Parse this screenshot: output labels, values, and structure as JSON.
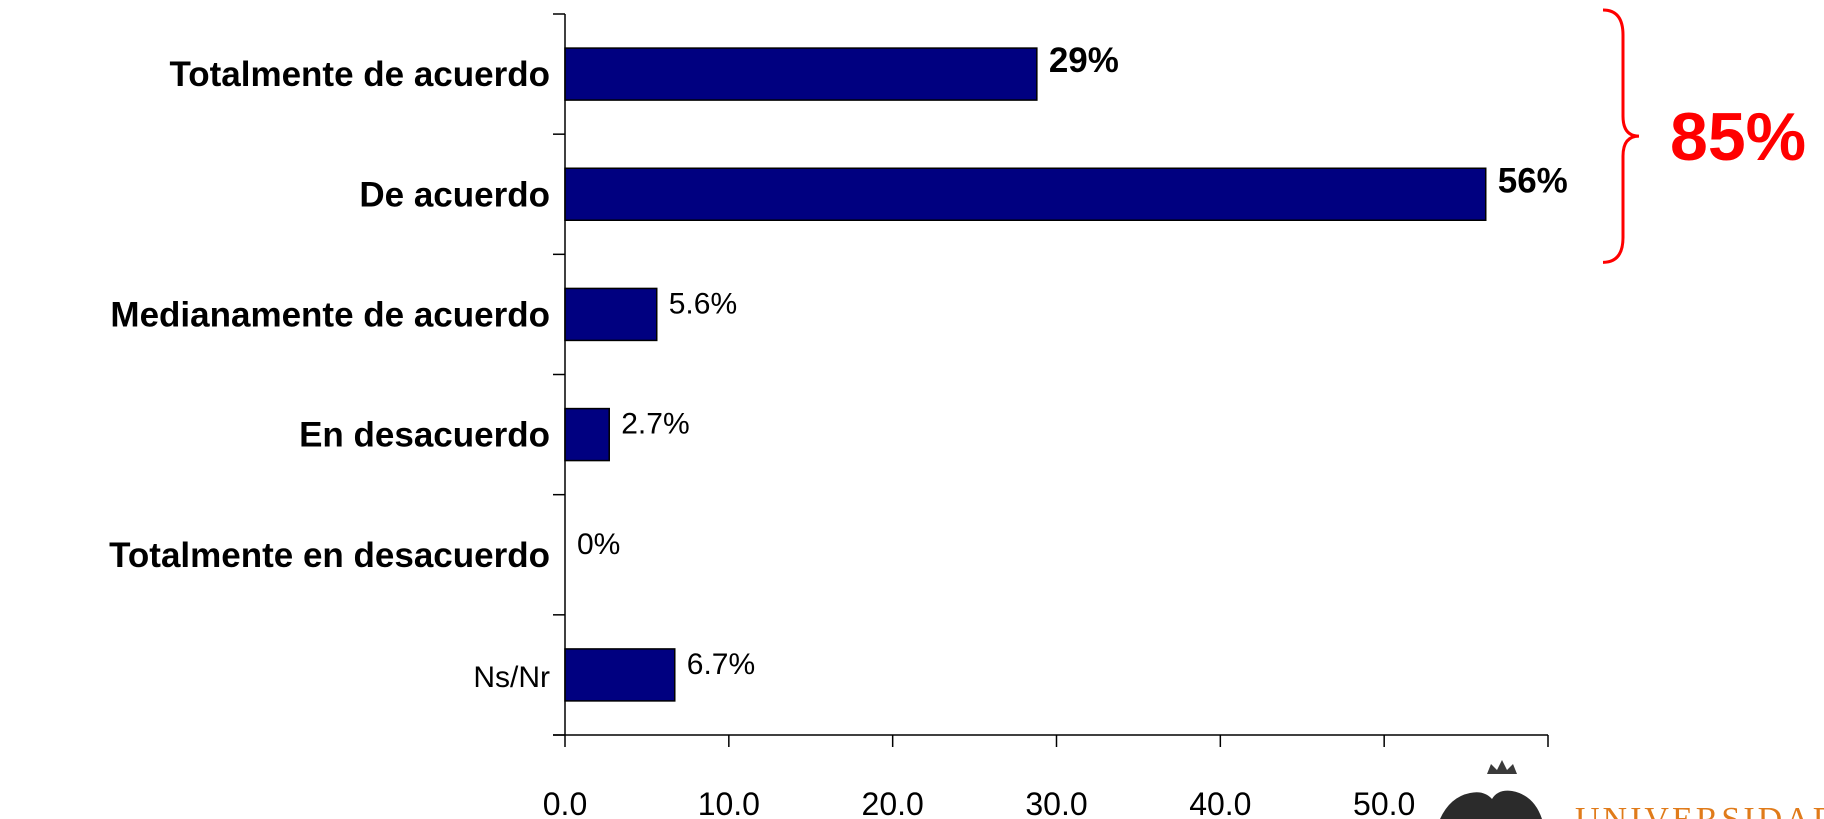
{
  "chart_data": {
    "type": "bar",
    "orientation": "horizontal",
    "categories": [
      "Totalmente de acuerdo",
      "De acuerdo",
      "Medianamente de acuerdo",
      "En desacuerdo",
      "Totalmente en desacuerdo",
      "Ns/Nr"
    ],
    "values": [
      28.8,
      56.2,
      5.6,
      2.7,
      0,
      6.7
    ],
    "data_labels": [
      "29%",
      "56%",
      "5.6%",
      "2.7%",
      "0%",
      "6.7%"
    ],
    "emphasized": [
      true,
      true,
      false,
      false,
      false,
      false
    ],
    "xlim": [
      0,
      60
    ],
    "x_ticks": [
      "0.0",
      "10.0",
      "20.0",
      "30.0",
      "40.0",
      "50.0"
    ],
    "x_tick_values": [
      0,
      10,
      20,
      30,
      40,
      50
    ],
    "bar_color": "#000080",
    "grid": false,
    "annotation": {
      "text": "85%",
      "covers_categories": [
        0,
        1
      ],
      "color": "#ff0000"
    }
  },
  "logo": {
    "text": "UNIVERSIDAD",
    "color": "#e07b1a"
  }
}
